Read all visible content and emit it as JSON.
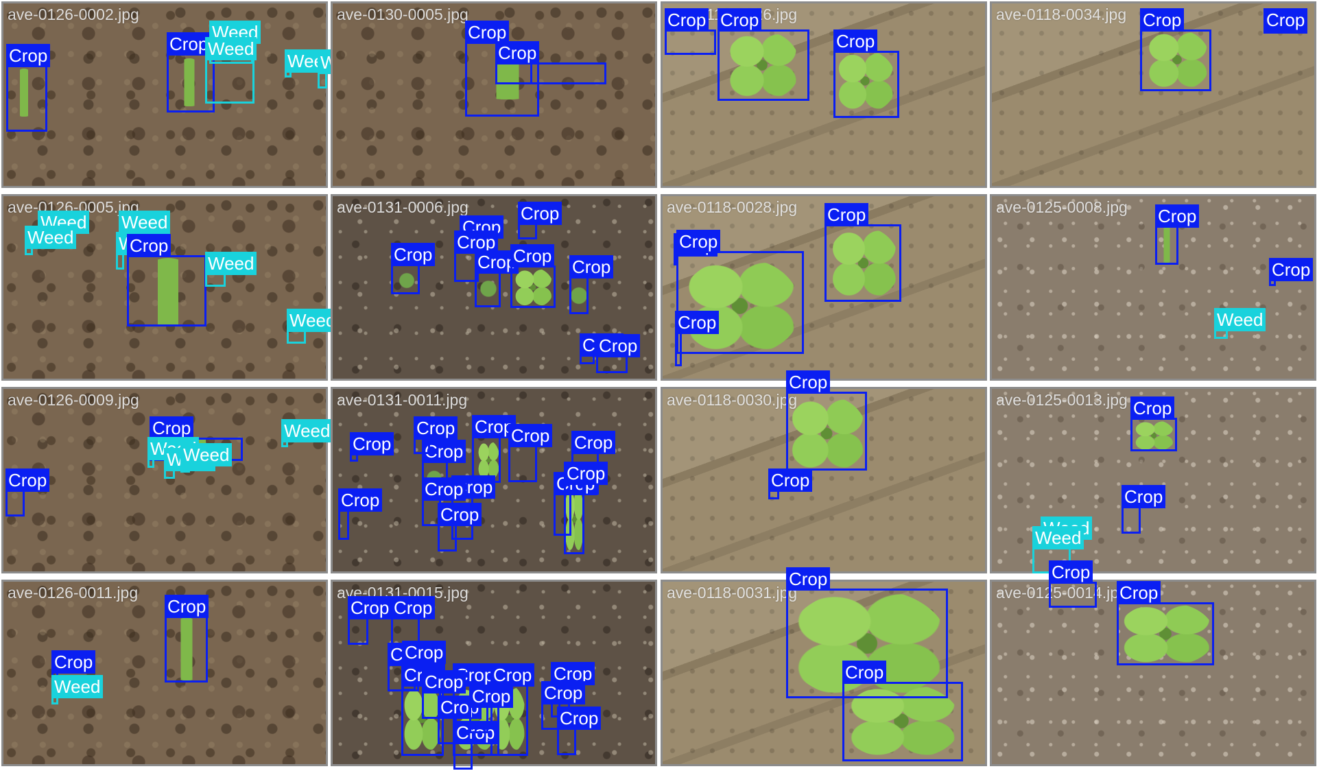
{
  "mosaic": {
    "tiles": [
      {
        "filename": "ave-0126-0002.jpg",
        "soil": "crumbly",
        "plants": [],
        "detections": [
          {
            "label": "Crop",
            "cls": "crop"
          },
          {
            "label": "Crop",
            "cls": "crop"
          },
          {
            "label": "Weed",
            "cls": "weed"
          },
          {
            "label": "Weed",
            "cls": "weed"
          },
          {
            "label": "Weed",
            "cls": "weed"
          },
          {
            "label": "Weed",
            "cls": "weed"
          }
        ]
      },
      {
        "filename": "ave-0130-0005.jpg",
        "soil": "crumbly",
        "detections": [
          {
            "label": "Crop",
            "cls": "crop"
          },
          {
            "label": "Crop",
            "cls": "crop"
          },
          {
            "label": "Crop",
            "cls": "crop"
          }
        ]
      },
      {
        "filename": "ave-0118-0026.jpg",
        "soil": "sandy",
        "detections": [
          {
            "label": "Crop",
            "cls": "crop"
          },
          {
            "label": "Crop",
            "cls": "crop"
          },
          {
            "label": "Crop",
            "cls": "crop"
          }
        ]
      },
      {
        "filename": "ave-0118-0034.jpg",
        "soil": "sandy",
        "detections": [
          {
            "label": "Crop",
            "cls": "crop"
          },
          {
            "label": "Crop",
            "cls": "crop"
          }
        ]
      },
      {
        "filename": "ave-0126-0005.jpg",
        "soil": "crumbly",
        "detections": [
          {
            "label": "Weed",
            "cls": "weed"
          },
          {
            "label": "Weed",
            "cls": "weed"
          },
          {
            "label": "Weed",
            "cls": "weed"
          },
          {
            "label": "Weed",
            "cls": "weed"
          },
          {
            "label": "Crop",
            "cls": "crop"
          },
          {
            "label": "Weed",
            "cls": "weed"
          },
          {
            "label": "Weed",
            "cls": "weed"
          }
        ]
      },
      {
        "filename": "ave-0131-0006.jpg",
        "soil": "dark",
        "detections": [
          {
            "label": "Crop",
            "cls": "crop"
          },
          {
            "label": "Crop",
            "cls": "crop"
          },
          {
            "label": "Crop",
            "cls": "crop"
          },
          {
            "label": "Crop",
            "cls": "crop"
          },
          {
            "label": "Crop",
            "cls": "crop"
          },
          {
            "label": "Crop",
            "cls": "crop"
          },
          {
            "label": "Crop",
            "cls": "crop"
          },
          {
            "label": "Crop",
            "cls": "crop"
          },
          {
            "label": "Crop",
            "cls": "crop"
          }
        ]
      },
      {
        "filename": "ave-0118-0028.jpg",
        "soil": "sandy",
        "detections": [
          {
            "label": "Crop",
            "cls": "crop"
          },
          {
            "label": "Crop",
            "cls": "crop"
          },
          {
            "label": "Crop",
            "cls": "crop"
          },
          {
            "label": "Crop",
            "cls": "crop"
          }
        ]
      },
      {
        "filename": "ave-0125-0008.jpg",
        "soil": "grey",
        "detections": [
          {
            "label": "Crop",
            "cls": "crop"
          },
          {
            "label": "Crop",
            "cls": "crop"
          },
          {
            "label": "Weed",
            "cls": "weed"
          }
        ]
      },
      {
        "filename": "ave-0126-0009.jpg",
        "soil": "crumbly",
        "detections": [
          {
            "label": "Crop",
            "cls": "crop"
          },
          {
            "label": "Weed",
            "cls": "weed"
          },
          {
            "label": "Weed",
            "cls": "weed"
          },
          {
            "label": "Weed",
            "cls": "weed"
          },
          {
            "label": "Weed",
            "cls": "weed"
          },
          {
            "label": "Crop",
            "cls": "crop"
          }
        ]
      },
      {
        "filename": "ave-0131-0011.jpg",
        "soil": "dark",
        "detections": [
          {
            "label": "Crop",
            "cls": "crop"
          },
          {
            "label": "Crop",
            "cls": "crop"
          },
          {
            "label": "Crop",
            "cls": "crop"
          },
          {
            "label": "Crop",
            "cls": "crop"
          },
          {
            "label": "Crop",
            "cls": "crop"
          },
          {
            "label": "Crop",
            "cls": "crop"
          },
          {
            "label": "Crop",
            "cls": "crop"
          },
          {
            "label": "Crop",
            "cls": "crop"
          },
          {
            "label": "Crop",
            "cls": "crop"
          },
          {
            "label": "Crop",
            "cls": "crop"
          },
          {
            "label": "Crop",
            "cls": "crop"
          },
          {
            "label": "Crop",
            "cls": "crop"
          }
        ]
      },
      {
        "filename": "ave-0118-0030.jpg",
        "soil": "sandy",
        "detections": [
          {
            "label": "Crop",
            "cls": "crop"
          },
          {
            "label": "Crop",
            "cls": "crop"
          }
        ]
      },
      {
        "filename": "ave-0125-0013.jpg",
        "soil": "grey",
        "detections": [
          {
            "label": "Crop",
            "cls": "crop"
          },
          {
            "label": "Weed",
            "cls": "weed"
          },
          {
            "label": "Weed",
            "cls": "weed"
          },
          {
            "label": "Crop",
            "cls": "crop"
          }
        ]
      },
      {
        "filename": "ave-0126-0011.jpg",
        "soil": "crumbly",
        "detections": [
          {
            "label": "Crop",
            "cls": "crop"
          },
          {
            "label": "Crop",
            "cls": "crop"
          },
          {
            "label": "Weed",
            "cls": "weed"
          }
        ]
      },
      {
        "filename": "ave-0131-0015.jpg",
        "soil": "dark",
        "detections": [
          {
            "label": "Crop",
            "cls": "crop"
          },
          {
            "label": "Crop",
            "cls": "crop"
          },
          {
            "label": "Crop",
            "cls": "crop"
          },
          {
            "label": "Crop",
            "cls": "crop"
          },
          {
            "label": "Crop",
            "cls": "crop"
          },
          {
            "label": "Crop",
            "cls": "crop"
          },
          {
            "label": "Crop",
            "cls": "crop"
          },
          {
            "label": "Crop",
            "cls": "crop"
          },
          {
            "label": "Crop",
            "cls": "crop"
          },
          {
            "label": "Crop",
            "cls": "crop"
          },
          {
            "label": "Crop",
            "cls": "crop"
          },
          {
            "label": "Crop",
            "cls": "crop"
          },
          {
            "label": "Crop",
            "cls": "crop"
          },
          {
            "label": "Crop",
            "cls": "crop"
          }
        ]
      },
      {
        "filename": "ave-0118-0031.jpg",
        "soil": "sandy",
        "detections": [
          {
            "label": "Crop",
            "cls": "crop"
          },
          {
            "label": "Crop",
            "cls": "crop"
          }
        ]
      },
      {
        "filename": "ave-0125-0014.jpg",
        "soil": "grey",
        "detections": [
          {
            "label": "Crop",
            "cls": "crop"
          },
          {
            "label": "Crop",
            "cls": "crop"
          }
        ]
      }
    ]
  },
  "colors": {
    "crop_box": "#0a1ff2",
    "weed_box": "#19d2dc",
    "label_text": "#ffffff",
    "tile_border": "#8c8c8c"
  }
}
